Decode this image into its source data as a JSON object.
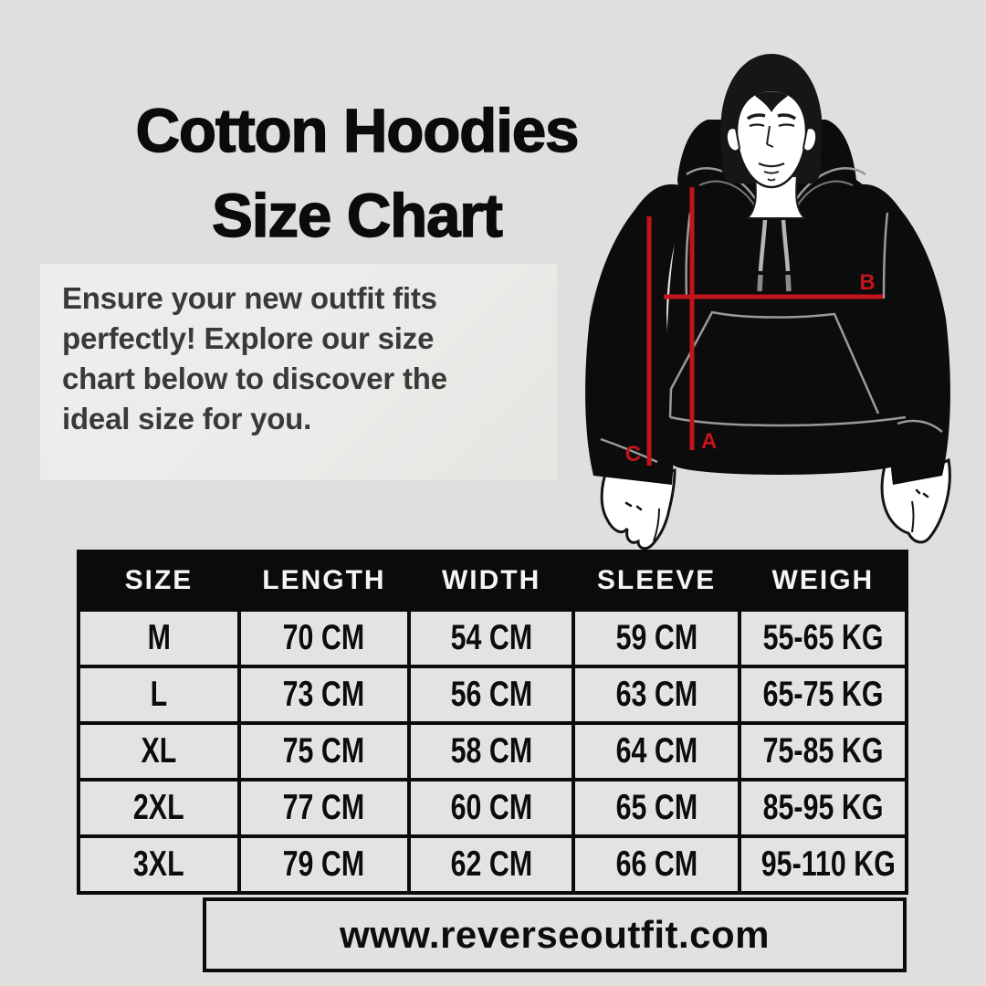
{
  "header": {
    "title_line1": "Cotton Hoodies",
    "title_line2": "Size Chart"
  },
  "intro": {
    "text": "Ensure your new outfit fits perfectly! Explore our size chart below to discover the ideal size for you."
  },
  "illustration": {
    "description": "man-in-black-hoodie-with-measurement-lines",
    "measure_labels": {
      "length": "A",
      "width": "B",
      "sleeve": "C"
    },
    "accent_color": "#c3131c"
  },
  "size_table": {
    "headers": [
      "SIZE",
      "LENGTH",
      "WIDTH",
      "SLEEVE",
      "WEIGH"
    ],
    "rows": [
      [
        "M",
        "70 CM",
        "54 CM",
        "59 CM",
        "55-65 KG"
      ],
      [
        "L",
        "73 CM",
        "56 CM",
        "63 CM",
        "65-75 KG"
      ],
      [
        "XL",
        "75 CM",
        "58 CM",
        "64 CM",
        "75-85 KG"
      ],
      [
        "2XL",
        "77 CM",
        "60 CM",
        "65 CM",
        "85-95 KG"
      ],
      [
        "3XL",
        "79 CM",
        "62 CM",
        "66 CM",
        "95-110 KG"
      ]
    ]
  },
  "footer": {
    "website": "www.reverseoutfit.com"
  },
  "colors": {
    "page_bg": "#e0dfdd",
    "card_bg": "#edecea",
    "table_header_bg": "#0b0b0b",
    "cell_bg": "#e4e3e1",
    "text": "#0d0d0d",
    "accent_red": "#c3131c",
    "seam_gray": "#9a9a9a"
  }
}
